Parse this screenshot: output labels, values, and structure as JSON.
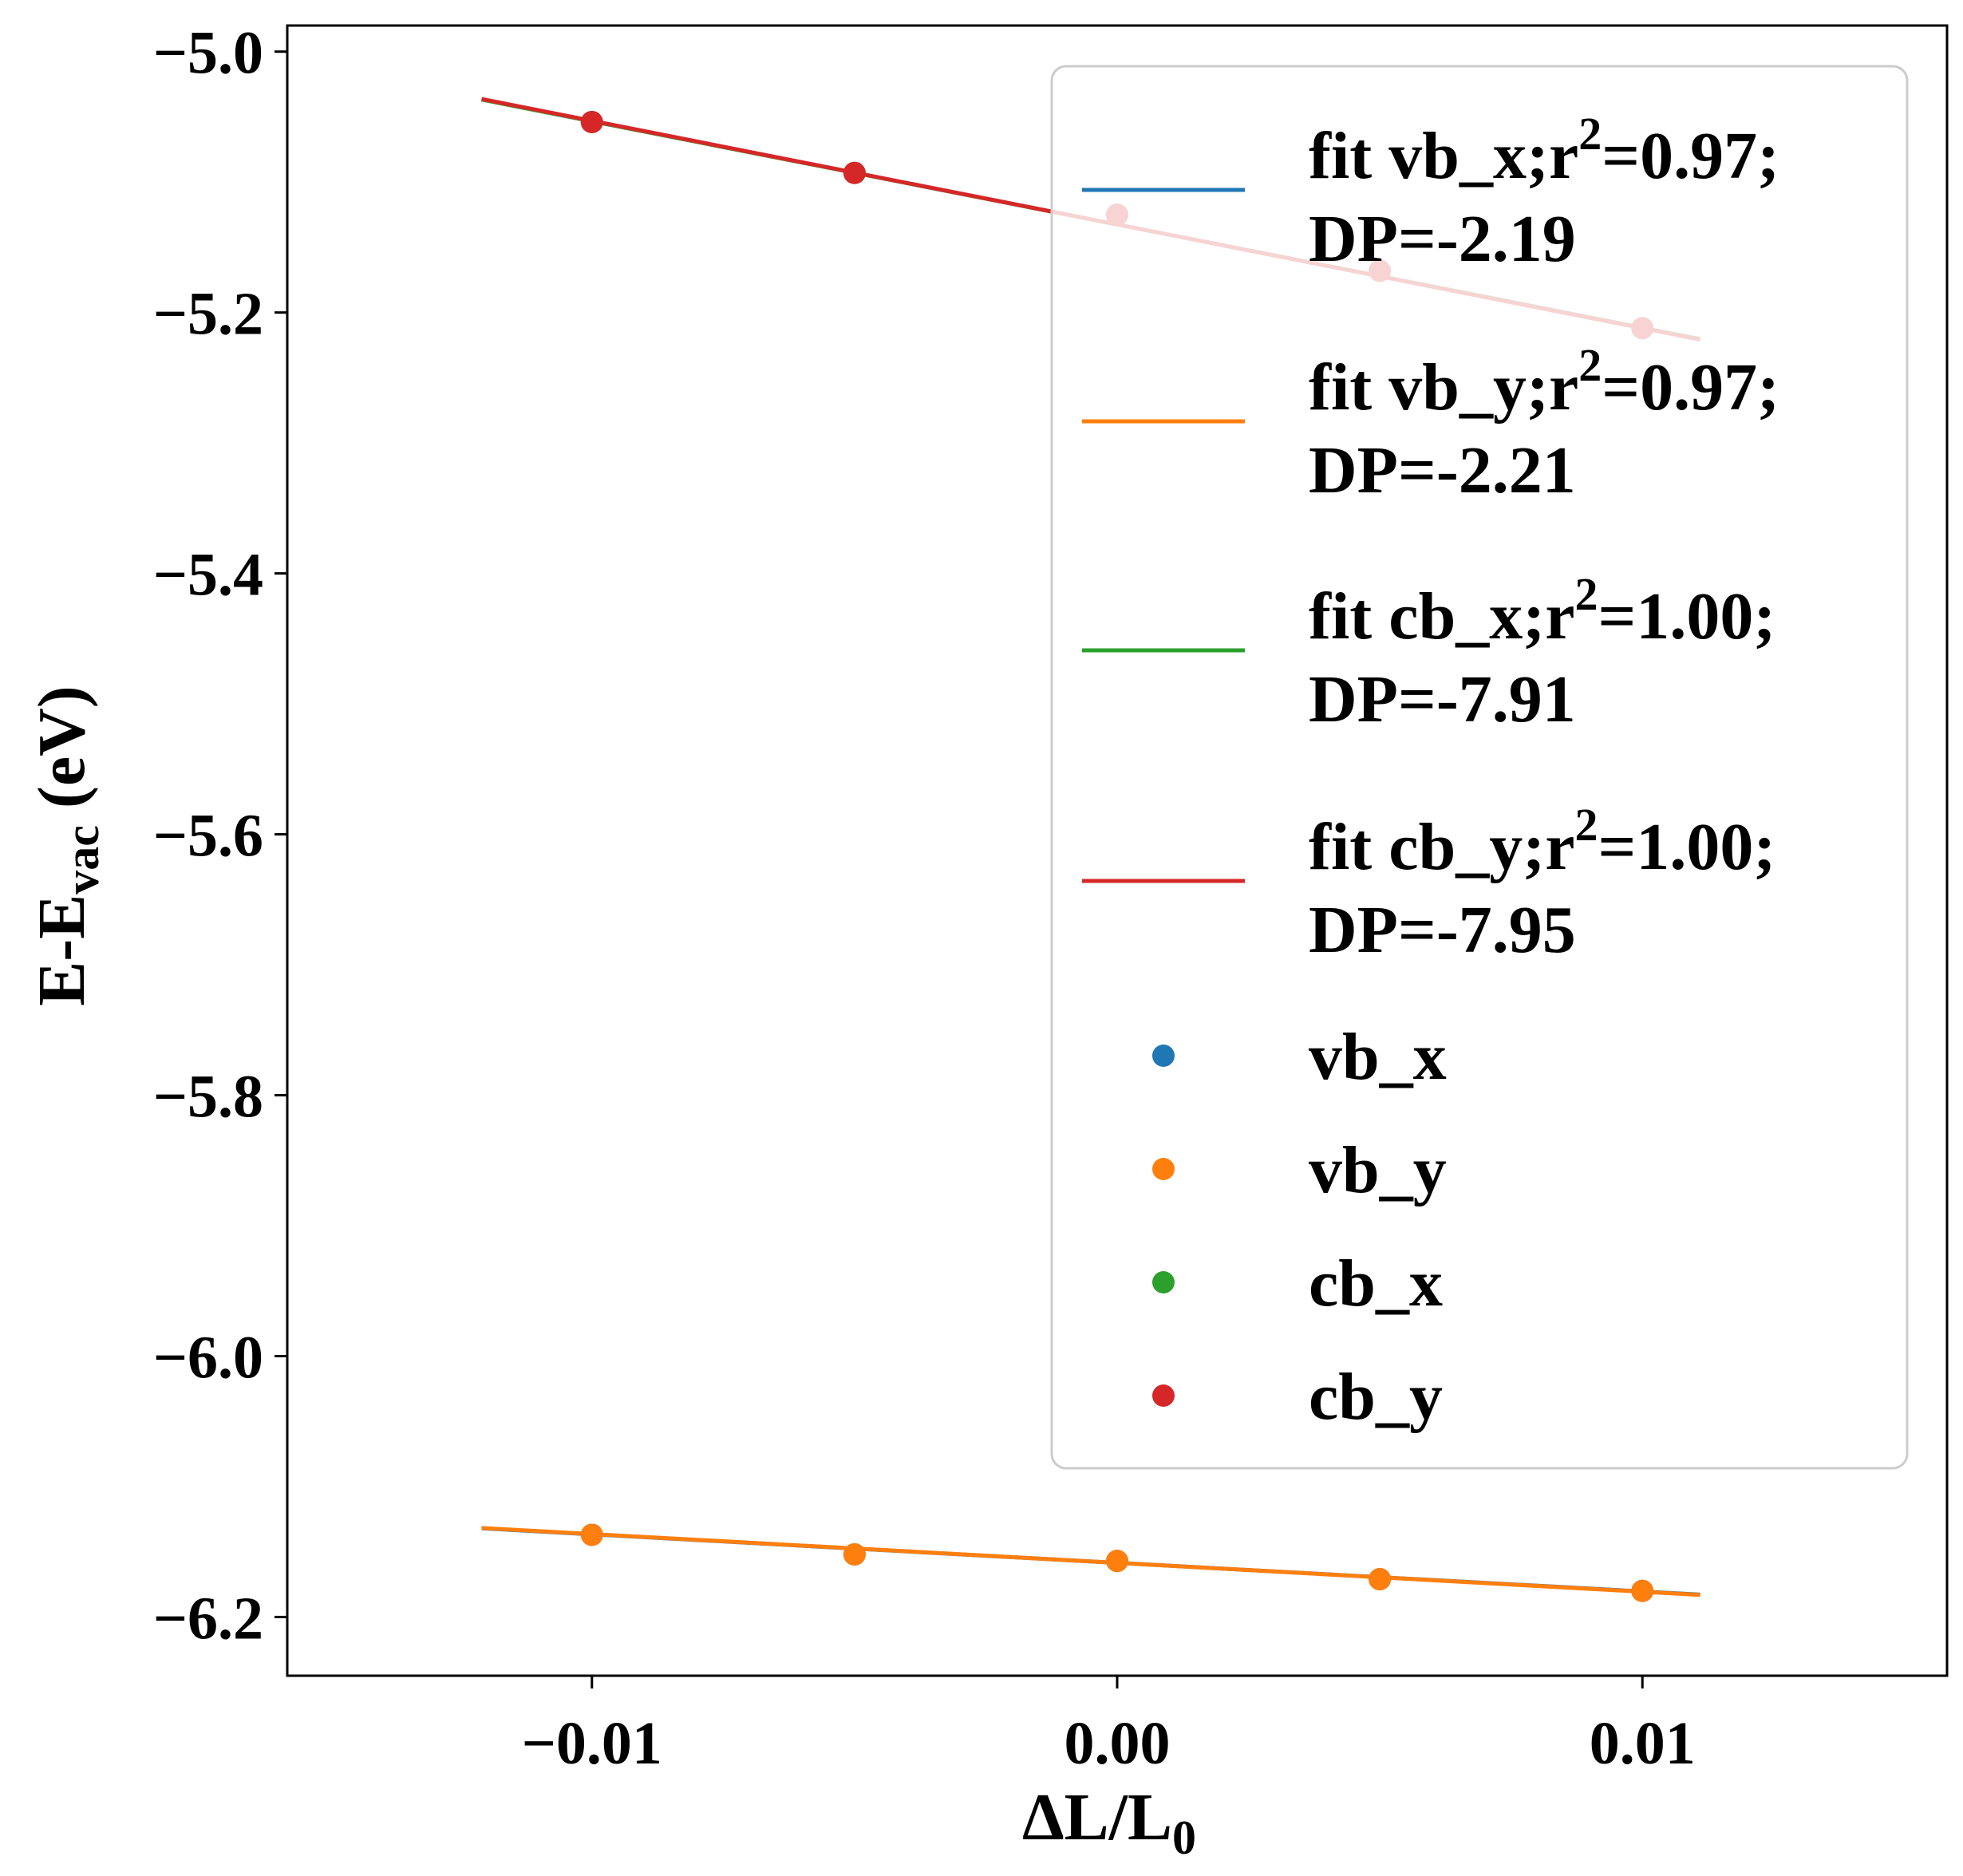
{
  "chart_data": {
    "type": "scatter",
    "xlabel": {
      "main": "ΔL/L",
      "sub": "0"
    },
    "ylabel": {
      "main": "E-E",
      "sub": "vac",
      "suffix": " (eV)"
    },
    "xlim": [
      -0.0158,
      0.0158
    ],
    "ylim": [
      -6.245,
      -4.98
    ],
    "x_ticks": [
      -0.01,
      0.0,
      0.01
    ],
    "x_tick_labels": [
      "−0.01",
      "0.00",
      "0.01"
    ],
    "y_ticks": [
      -5.0,
      -5.2,
      -5.4,
      -5.6,
      -5.8,
      -6.0,
      -6.2
    ],
    "y_tick_labels": [
      "−5.0",
      "−5.2",
      "−5.4",
      "−5.6",
      "−5.8",
      "−6.0",
      "−6.2"
    ],
    "grid": false,
    "legend_position": "upper right",
    "fits": [
      {
        "line1": "fit vb_x;r",
        "sup": "2",
        "line1b": "=0.97;",
        "line2": "DP=-2.19",
        "color": "#1f77b4",
        "x_range": [
          -0.0121,
          0.0111
        ],
        "slope": -2.19,
        "intercept": -6.1585
      },
      {
        "line1": "fit vb_y;r",
        "sup": "2",
        "line1b": "=0.97;",
        "line2": "DP=-2.21",
        "color": "#ff7f0e",
        "x_range": [
          -0.0121,
          0.0111
        ],
        "slope": -2.21,
        "intercept": -6.1585
      },
      {
        "line1": "fit cb_x;r",
        "sup": "2",
        "line1b": "=1.00;",
        "line2": "DP=-7.91",
        "color": "#2ca02c",
        "x_range": [
          -0.0121,
          0.0111
        ],
        "slope": -7.91,
        "intercept": -5.1325
      },
      {
        "line1": "fit cb_y;r",
        "sup": "2",
        "line1b": "=1.00;",
        "line2": "DP=-7.95",
        "color": "#d62728",
        "x_range": [
          -0.0121,
          0.0111
        ],
        "slope": -7.95,
        "intercept": -5.1325
      }
    ],
    "series": [
      {
        "name": "vb_x",
        "color": "#1f77b4",
        "x": [
          -0.01,
          -0.005,
          0.0,
          0.005,
          0.01
        ],
        "y": [
          -6.137,
          -6.152,
          -6.157,
          -6.171,
          -6.18
        ]
      },
      {
        "name": "vb_y",
        "color": "#ff7f0e",
        "x": [
          -0.01,
          -0.005,
          0.0,
          0.005,
          0.01
        ],
        "y": [
          -6.137,
          -6.152,
          -6.157,
          -6.171,
          -6.18
        ]
      },
      {
        "name": "cb_x",
        "color": "#2ca02c",
        "x": [
          -0.01,
          -0.005,
          0.0,
          0.005,
          0.01
        ],
        "y": [
          -5.054,
          -5.093,
          -5.125,
          -5.168,
          -5.212
        ]
      },
      {
        "name": "cb_y",
        "color": "#d62728",
        "x": [
          -0.01,
          -0.005,
          0.0,
          0.005,
          0.01
        ],
        "y": [
          -5.054,
          -5.093,
          -5.125,
          -5.168,
          -5.212
        ]
      }
    ]
  }
}
